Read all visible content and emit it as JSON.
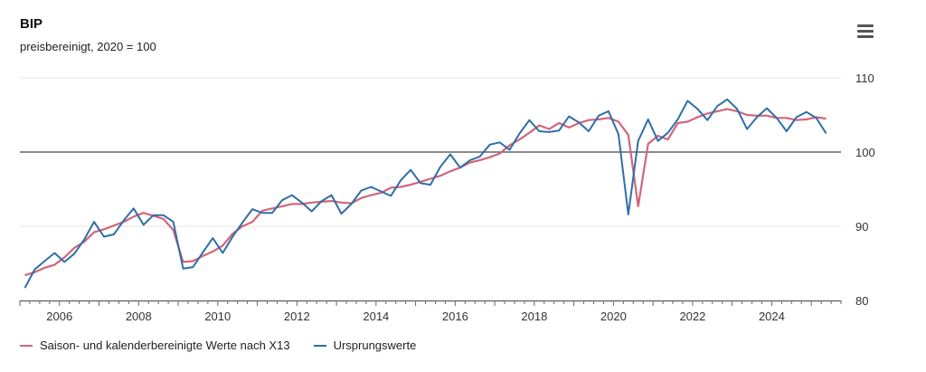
{
  "chart_data": {
    "type": "line",
    "title": "BIP",
    "subtitle": "preisbereinigt, 2020 = 100",
    "xlim": [
      2005.0,
      2025.75
    ],
    "ylim": [
      80,
      110
    ],
    "x_ticks": [
      2006,
      2008,
      2010,
      2012,
      2014,
      2016,
      2018,
      2020,
      2022,
      2024
    ],
    "y_ticks": [
      80,
      90,
      100,
      110
    ],
    "reference_line": 100,
    "grid": "horizontal",
    "legend_position": "bottom-left",
    "series": [
      {
        "name": "Saison- und kalenderbereinigte Werte nach X13",
        "color": "#d1667a",
        "x": [
          2005.125,
          2005.375,
          2005.625,
          2005.875,
          2006.125,
          2006.375,
          2006.625,
          2006.875,
          2007.125,
          2007.375,
          2007.625,
          2007.875,
          2008.125,
          2008.375,
          2008.625,
          2008.875,
          2009.125,
          2009.375,
          2009.625,
          2009.875,
          2010.125,
          2010.375,
          2010.625,
          2010.875,
          2011.125,
          2011.375,
          2011.625,
          2011.875,
          2012.125,
          2012.375,
          2012.625,
          2012.875,
          2013.125,
          2013.375,
          2013.625,
          2013.875,
          2014.125,
          2014.375,
          2014.625,
          2014.875,
          2015.125,
          2015.375,
          2015.625,
          2015.875,
          2016.125,
          2016.375,
          2016.625,
          2016.875,
          2017.125,
          2017.375,
          2017.625,
          2017.875,
          2018.125,
          2018.375,
          2018.625,
          2018.875,
          2019.125,
          2019.375,
          2019.625,
          2019.875,
          2020.125,
          2020.375,
          2020.625,
          2020.875,
          2021.125,
          2021.375,
          2021.625,
          2021.875,
          2022.125,
          2022.375,
          2022.625,
          2022.875,
          2023.125,
          2023.375,
          2023.625,
          2023.875,
          2024.125,
          2024.375,
          2024.625,
          2024.875,
          2025.125,
          2025.375
        ],
        "values": [
          83.4,
          83.8,
          84.4,
          84.8,
          85.8,
          87.1,
          87.9,
          89.2,
          89.6,
          90.1,
          90.6,
          91.3,
          91.8,
          91.4,
          91.0,
          89.5,
          85.2,
          85.3,
          86.0,
          86.6,
          87.4,
          89.0,
          90.0,
          90.6,
          92.1,
          92.4,
          92.7,
          93.0,
          93.0,
          93.2,
          93.3,
          93.4,
          93.2,
          93.1,
          93.8,
          94.2,
          94.5,
          95.2,
          95.3,
          95.6,
          96.0,
          96.4,
          96.8,
          97.4,
          97.9,
          98.6,
          98.9,
          99.3,
          99.8,
          100.9,
          101.7,
          102.6,
          103.6,
          103.1,
          103.9,
          103.3,
          103.9,
          104.3,
          104.4,
          104.6,
          104.1,
          102.3,
          92.7,
          101.1,
          102.2,
          101.7,
          103.9,
          104.1,
          104.7,
          105.2,
          105.5,
          105.8,
          105.5,
          105.0,
          104.9,
          104.9,
          104.6,
          104.6,
          104.3,
          104.4,
          104.7,
          104.5
        ]
      },
      {
        "name": "Ursprungswerte",
        "color": "#2f6fa6",
        "x": [
          2005.125,
          2005.375,
          2005.625,
          2005.875,
          2006.125,
          2006.375,
          2006.625,
          2006.875,
          2007.125,
          2007.375,
          2007.625,
          2007.875,
          2008.125,
          2008.375,
          2008.625,
          2008.875,
          2009.125,
          2009.375,
          2009.625,
          2009.875,
          2010.125,
          2010.375,
          2010.625,
          2010.875,
          2011.125,
          2011.375,
          2011.625,
          2011.875,
          2012.125,
          2012.375,
          2012.625,
          2012.875,
          2013.125,
          2013.375,
          2013.625,
          2013.875,
          2014.125,
          2014.375,
          2014.625,
          2014.875,
          2015.125,
          2015.375,
          2015.625,
          2015.875,
          2016.125,
          2016.375,
          2016.625,
          2016.875,
          2017.125,
          2017.375,
          2017.625,
          2017.875,
          2018.125,
          2018.375,
          2018.625,
          2018.875,
          2019.125,
          2019.375,
          2019.625,
          2019.875,
          2020.125,
          2020.375,
          2020.625,
          2020.875,
          2021.125,
          2021.375,
          2021.625,
          2021.875,
          2022.125,
          2022.375,
          2022.625,
          2022.875,
          2023.125,
          2023.375,
          2023.625,
          2023.875,
          2024.125,
          2024.375,
          2024.625,
          2024.875,
          2025.125,
          2025.375
        ],
        "values": [
          81.7,
          84.2,
          85.3,
          86.4,
          85.2,
          86.3,
          88.2,
          90.6,
          88.6,
          88.9,
          90.8,
          92.4,
          90.2,
          91.5,
          91.5,
          90.6,
          84.3,
          84.5,
          86.5,
          88.4,
          86.4,
          88.6,
          90.5,
          92.3,
          91.8,
          91.8,
          93.5,
          94.2,
          93.2,
          92.0,
          93.4,
          94.2,
          91.7,
          93.0,
          94.8,
          95.3,
          94.7,
          94.1,
          96.2,
          97.6,
          95.8,
          95.6,
          98.0,
          99.7,
          97.9,
          98.9,
          99.4,
          101.0,
          101.3,
          100.3,
          102.5,
          104.3,
          102.8,
          102.7,
          102.9,
          104.8,
          104.0,
          102.8,
          104.9,
          105.5,
          102.4,
          91.6,
          101.5,
          104.4,
          101.5,
          102.6,
          104.4,
          106.9,
          105.8,
          104.3,
          106.2,
          107.1,
          105.8,
          103.1,
          104.7,
          105.9,
          104.6,
          102.8,
          104.7,
          105.4,
          104.6,
          102.5
        ]
      }
    ]
  }
}
